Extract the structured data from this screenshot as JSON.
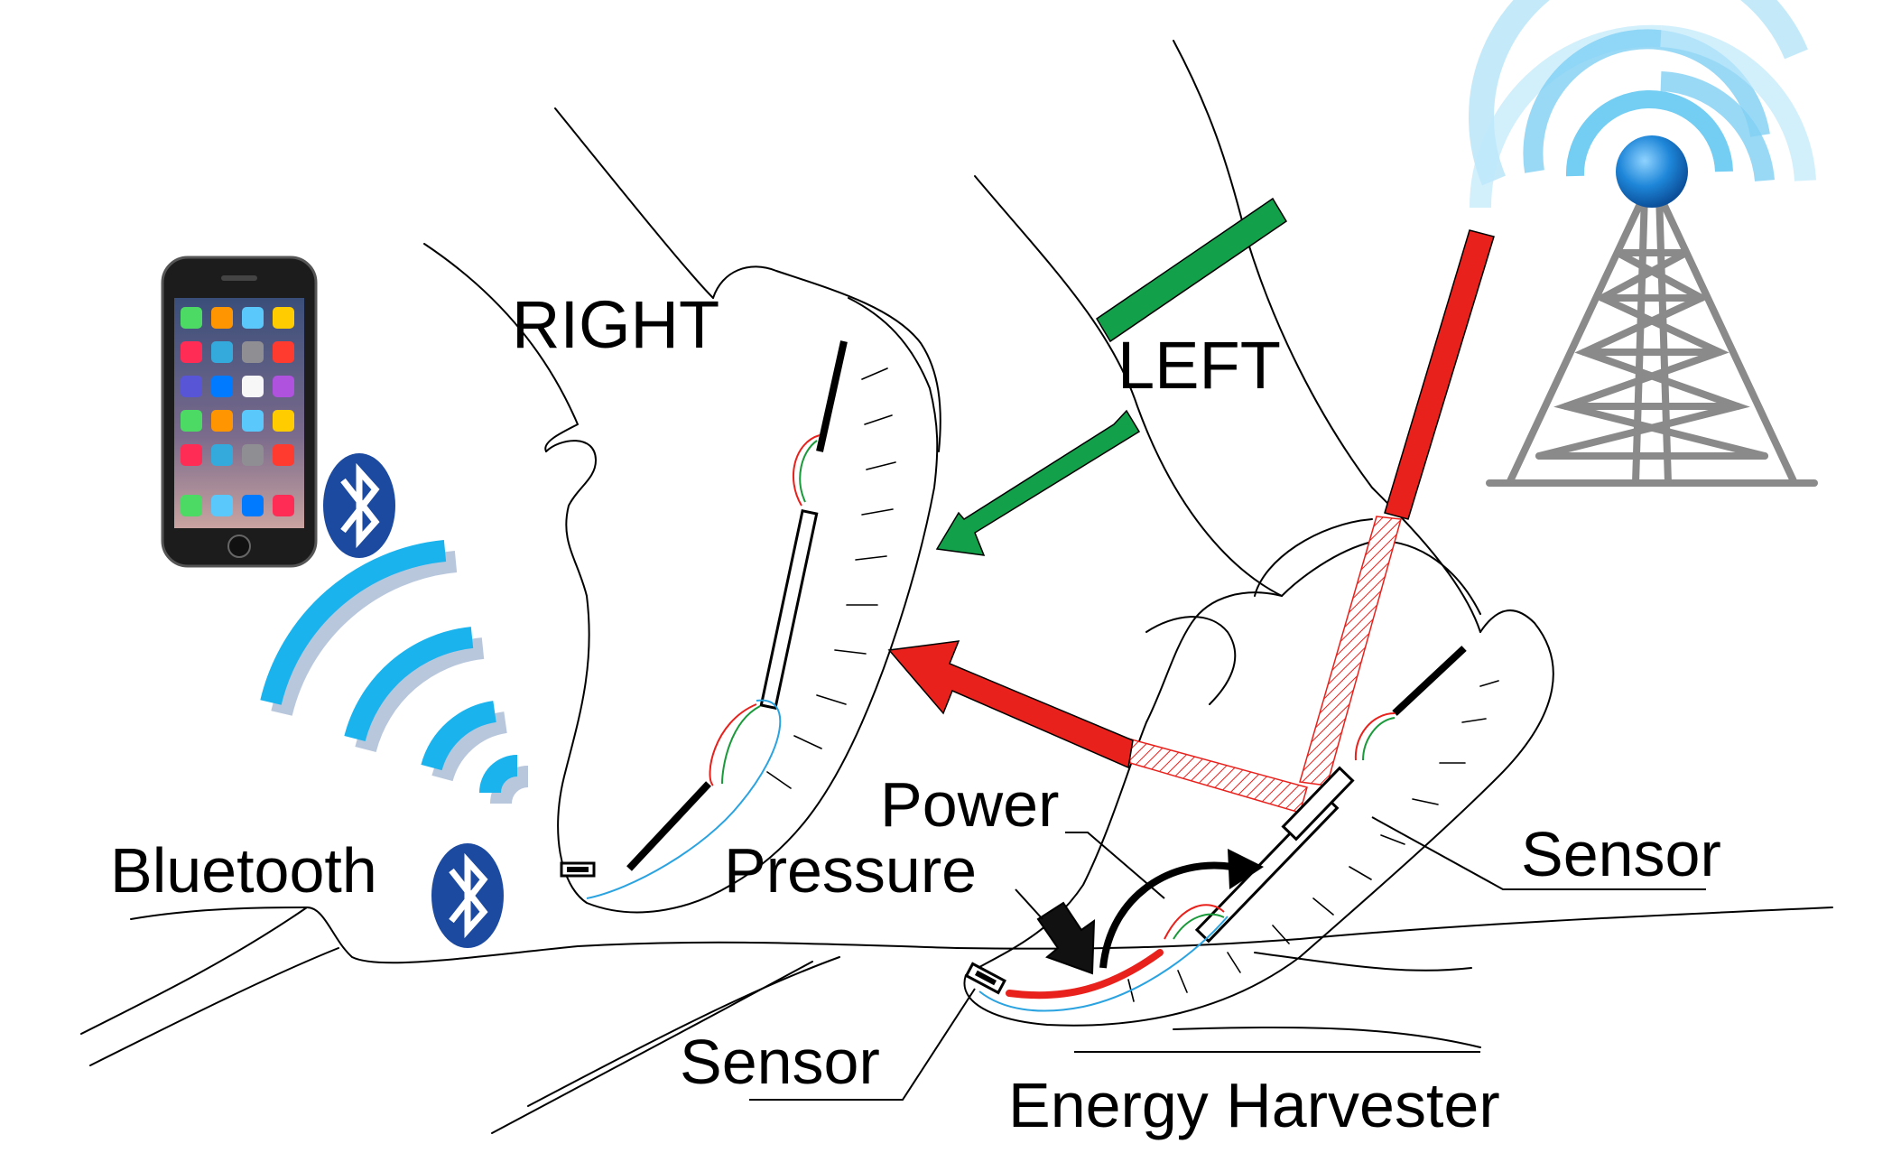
{
  "labels": {
    "right": "RIGHT",
    "left": "LEFT",
    "bluetooth": "Bluetooth",
    "power": "Power",
    "pressure": "Pressure",
    "sensor_right": "Sensor",
    "sensor_bottom": "Sensor",
    "energy_harvester": "Energy Harvester"
  },
  "icons": {
    "phone": "smartphone-icon",
    "bluetooth": "bluetooth-icon",
    "wireless": "wireless-signal-icon",
    "tower": "radio-tower-icon"
  },
  "colors": {
    "arrow_green": "#12a04a",
    "arrow_red": "#e8211c",
    "signal_blue": "#1ab3ee",
    "signal_shadow": "#b9c7dd",
    "bluetooth_badge": "#1c4aa0",
    "wire_blue": "#2aa3e0",
    "wire_green": "#1a9a3a",
    "wire_red": "#e8211c",
    "tower_ball": "#1e86d8",
    "tower_frame": "#8a8a8a"
  }
}
